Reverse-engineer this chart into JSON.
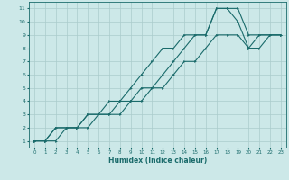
{
  "xlabel": "Humidex (Indice chaleur)",
  "bg_color": "#cce8e8",
  "grid_color": "#aacccc",
  "line_color": "#1a6b6b",
  "xlim": [
    -0.5,
    23.5
  ],
  "ylim": [
    0.5,
    11.5
  ],
  "xticks": [
    0,
    1,
    2,
    3,
    4,
    5,
    6,
    7,
    8,
    9,
    10,
    11,
    12,
    13,
    14,
    15,
    16,
    17,
    18,
    19,
    20,
    21,
    22,
    23
  ],
  "yticks": [
    1,
    2,
    3,
    4,
    5,
    6,
    7,
    8,
    9,
    10,
    11
  ],
  "line1_x": [
    0,
    1,
    2,
    3,
    4,
    5,
    6,
    7,
    8,
    9,
    10,
    11,
    12,
    13,
    14,
    15,
    16,
    17,
    18,
    19,
    20,
    21,
    22,
    23
  ],
  "line1_y": [
    1,
    1,
    2,
    2,
    2,
    3,
    3,
    3,
    4,
    4,
    5,
    5,
    6,
    7,
    8,
    9,
    9,
    11,
    11,
    11,
    9,
    9,
    9,
    9
  ],
  "line2_x": [
    0,
    1,
    2,
    3,
    4,
    5,
    6,
    7,
    8,
    9,
    10,
    11,
    12,
    13,
    14,
    15,
    16,
    17,
    18,
    19,
    20,
    21,
    22,
    23
  ],
  "line2_y": [
    1,
    1,
    2,
    2,
    2,
    3,
    3,
    4,
    4,
    5,
    6,
    7,
    8,
    8,
    9,
    9,
    9,
    11,
    11,
    10,
    8,
    9,
    9,
    9
  ],
  "line3_x": [
    0,
    1,
    2,
    3,
    4,
    5,
    6,
    7,
    8,
    9,
    10,
    11,
    12,
    13,
    14,
    15,
    16,
    17,
    18,
    19,
    20,
    21,
    22,
    23
  ],
  "line3_y": [
    1,
    1,
    1,
    2,
    2,
    2,
    3,
    3,
    3,
    4,
    4,
    5,
    5,
    6,
    7,
    7,
    8,
    9,
    9,
    9,
    8,
    8,
    9,
    9
  ]
}
